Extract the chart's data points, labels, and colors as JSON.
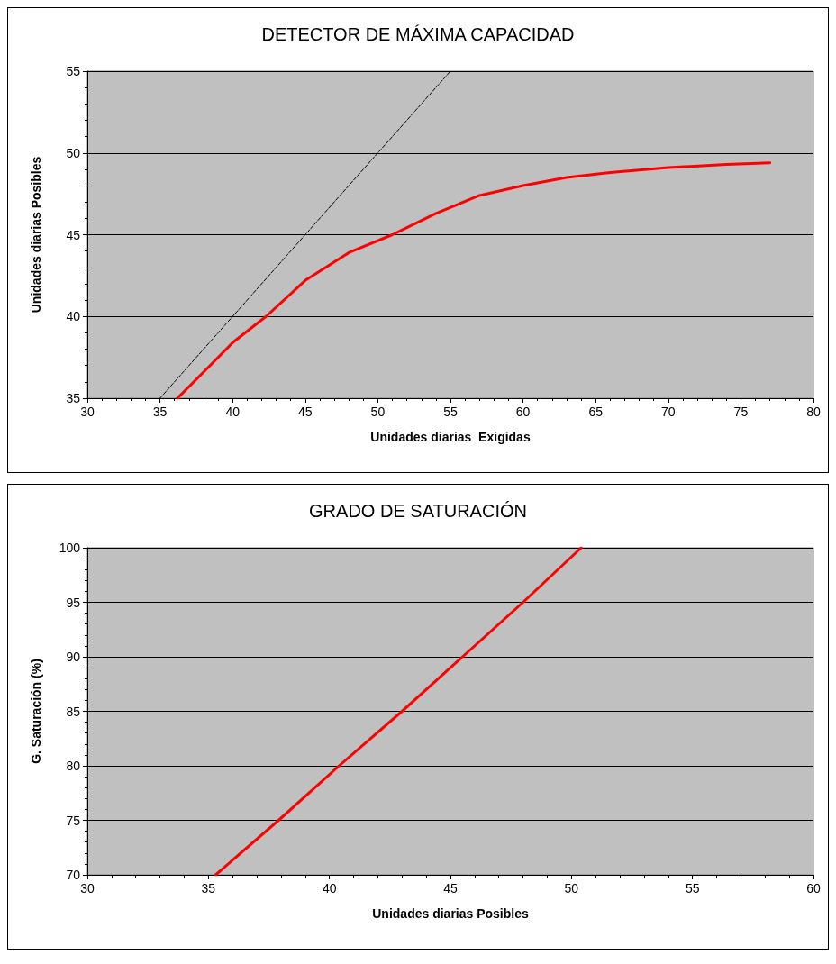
{
  "chart_data": [
    {
      "type": "line",
      "title": "DETECTOR DE MÁXIMA CAPACIDAD",
      "xlabel": "Unidades diarias  Exigidas",
      "ylabel": "Unidades diarias Posibles",
      "xlim": [
        30,
        80
      ],
      "xticks": [
        30,
        35,
        40,
        45,
        50,
        55,
        60,
        65,
        70,
        75,
        80
      ],
      "ylim": [
        35,
        55
      ],
      "yticks": [
        35,
        40,
        45,
        50,
        55
      ],
      "grid": "y",
      "marker": "none",
      "series": [
        {
          "color": "#000000",
          "line_style": "dashed",
          "x": [
            35,
            55
          ],
          "values": [
            35,
            55
          ]
        },
        {
          "color": "#ff0000",
          "line_style": "solid",
          "x": [
            36.2,
            38,
            40,
            42.3,
            45,
            48,
            51,
            54,
            57,
            60,
            63,
            66,
            70,
            74,
            77
          ],
          "values": [
            35,
            36.6,
            38.4,
            40,
            42.2,
            43.9,
            45,
            46.3,
            47.4,
            48,
            48.5,
            48.8,
            49.1,
            49.3,
            49.4
          ]
        }
      ]
    },
    {
      "type": "line",
      "title": "GRADO DE SATURACIÓN",
      "xlabel": "Unidades diarias Posibles",
      "ylabel": "G. Saturación (%)",
      "xlim": [
        30,
        60
      ],
      "xticks": [
        30,
        35,
        40,
        45,
        50,
        55,
        60
      ],
      "ylim": [
        70,
        100
      ],
      "yticks": [
        70,
        75,
        80,
        85,
        90,
        95,
        100
      ],
      "grid": "y",
      "marker": "none",
      "series": [
        {
          "color": "#ff0000",
          "line_style": "solid",
          "x": [
            35.3,
            37.9,
            40.4,
            43,
            45.5,
            48,
            50.4
          ],
          "values": [
            70,
            75,
            80,
            85,
            90,
            95,
            100
          ]
        }
      ]
    }
  ]
}
